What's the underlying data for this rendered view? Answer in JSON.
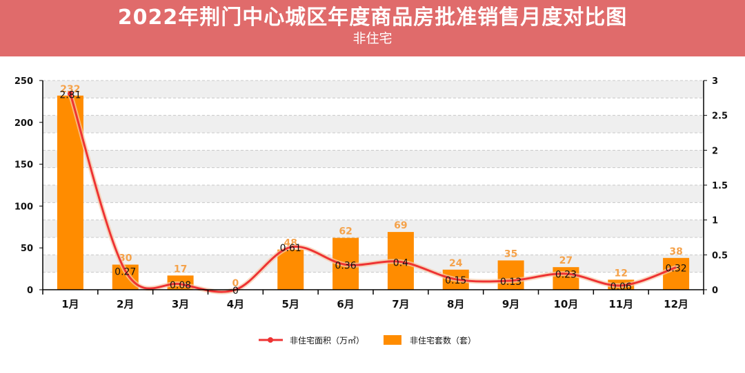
{
  "header": {
    "title": "2022年荆门中心城区年度商品房批准销售月度对比图",
    "subtitle": "非住宅"
  },
  "colors": {
    "header_bg": "#e06b6b",
    "bar": "#ff8c00",
    "line": "#ee3333",
    "bar_label": "#f5a24a"
  },
  "chart_data": {
    "type": "bar",
    "title": "2022年荆门中心城区年度商品房批准销售月度对比图",
    "subtitle": "非住宅",
    "categories": [
      "1月",
      "2月",
      "3月",
      "4月",
      "5月",
      "6月",
      "7月",
      "8月",
      "9月",
      "10月",
      "11月",
      "12月"
    ],
    "series": [
      {
        "name": "非住宅套数（套）",
        "type": "bar",
        "axis": "left",
        "values": [
          232,
          30,
          17,
          0,
          48,
          62,
          69,
          24,
          35,
          27,
          12,
          38
        ]
      },
      {
        "name": "非住宅面积（万㎡）",
        "type": "line",
        "axis": "right",
        "values": [
          2.81,
          0.27,
          0.08,
          0,
          0.61,
          0.36,
          0.4,
          0.15,
          0.13,
          0.23,
          0.06,
          0.32
        ]
      }
    ],
    "ylim": [
      0,
      250
    ],
    "yticks": [
      0,
      50,
      100,
      150,
      200,
      250
    ],
    "y2lim": [
      0,
      3
    ],
    "y2ticks": [
      "0",
      "0.5",
      "1",
      "1.5",
      "2",
      "2.5",
      "3"
    ],
    "xlabel": "",
    "ylabel": "",
    "grid": true,
    "legend_position": "bottom"
  }
}
